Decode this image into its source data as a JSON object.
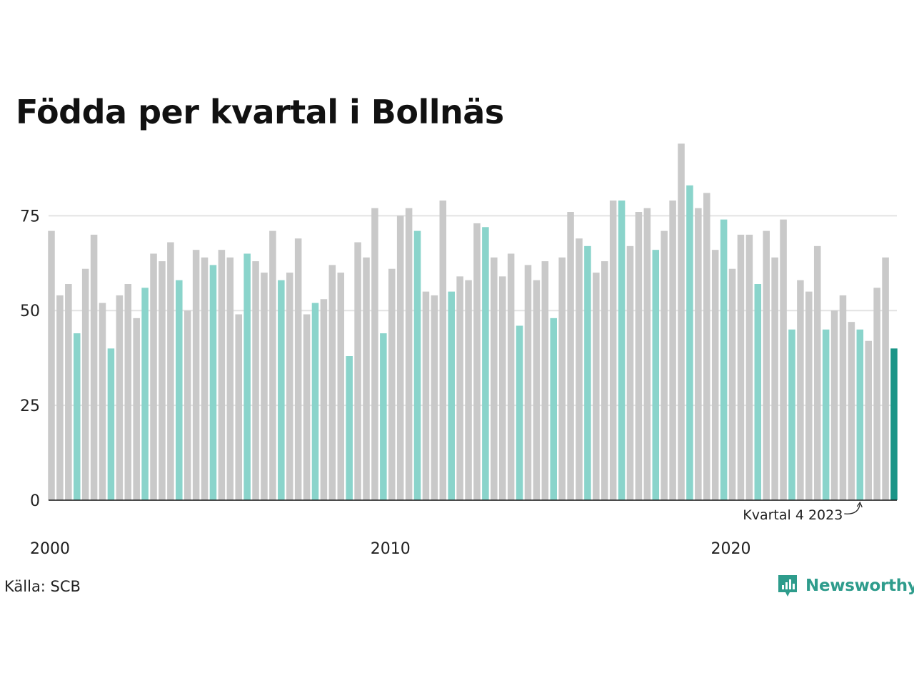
{
  "title": "Födda per kvartal i Bollnäs",
  "source": "Källa: SCB",
  "brand": {
    "name": "Newsworthy",
    "icon": "newsworthy-logo-icon"
  },
  "colors": {
    "default": "#c9c9c9",
    "highlight": "#8ad4cb",
    "latest": "#1a9587",
    "grid": "#e3e3e3",
    "axis": "#111111",
    "brand": "#2e9c8c"
  },
  "chart_data": {
    "type": "bar",
    "title": "Födda per kvartal i Bollnäs",
    "xlabel": "",
    "ylabel": "",
    "ylim": [
      0,
      95
    ],
    "yticks": [
      0,
      25,
      50,
      75
    ],
    "grid": true,
    "xtick_labels": [
      {
        "label": "2000",
        "index": 0
      },
      {
        "label": "2010",
        "index": 40
      },
      {
        "label": "2020",
        "index": 80
      }
    ],
    "annotation": {
      "text": "Kvartal 4 2023",
      "index": 95
    },
    "categories": [
      "2000 K1",
      "2000 K2",
      "2000 K3",
      "2000 K4",
      "2001 K1",
      "2001 K2",
      "2001 K3",
      "2001 K4",
      "2002 K1",
      "2002 K2",
      "2002 K3",
      "2002 K4",
      "2003 K1",
      "2003 K2",
      "2003 K3",
      "2003 K4",
      "2004 K1",
      "2004 K2",
      "2004 K3",
      "2004 K4",
      "2005 K1",
      "2005 K2",
      "2005 K3",
      "2005 K4",
      "2006 K1",
      "2006 K2",
      "2006 K3",
      "2006 K4",
      "2007 K1",
      "2007 K2",
      "2007 K3",
      "2007 K4",
      "2008 K1",
      "2008 K2",
      "2008 K3",
      "2008 K4",
      "2009 K1",
      "2009 K2",
      "2009 K3",
      "2009 K4",
      "2010 K1",
      "2010 K2",
      "2010 K3",
      "2010 K4",
      "2011 K1",
      "2011 K2",
      "2011 K3",
      "2011 K4",
      "2012 K1",
      "2012 K2",
      "2012 K3",
      "2012 K4",
      "2013 K1",
      "2013 K2",
      "2013 K3",
      "2013 K4",
      "2014 K1",
      "2014 K2",
      "2014 K3",
      "2014 K4",
      "2015 K1",
      "2015 K2",
      "2015 K3",
      "2015 K4",
      "2016 K1",
      "2016 K2",
      "2016 K3",
      "2016 K4",
      "2017 K1",
      "2017 K2",
      "2017 K3",
      "2017 K4",
      "2018 K1",
      "2018 K2",
      "2018 K3",
      "2018 K4",
      "2019 K1",
      "2019 K2",
      "2019 K3",
      "2019 K4",
      "2020 K1",
      "2020 K2",
      "2020 K3",
      "2020 K4",
      "2021 K1",
      "2021 K2",
      "2021 K3",
      "2021 K4",
      "2022 K1",
      "2022 K2",
      "2022 K3",
      "2022 K4",
      "2023 K1",
      "2023 K2",
      "2023 K3",
      "2023 K4",
      "2024 K1",
      "2024 K2",
      "2024 K3",
      "2024 K4"
    ],
    "values": [
      71,
      54,
      57,
      44,
      61,
      70,
      52,
      40,
      54,
      57,
      48,
      56,
      65,
      63,
      68,
      58,
      50,
      66,
      64,
      62,
      66,
      64,
      49,
      65,
      63,
      60,
      71,
      58,
      60,
      69,
      49,
      52,
      53,
      62,
      60,
      38,
      68,
      64,
      77,
      44,
      61,
      75,
      77,
      71,
      55,
      54,
      79,
      55,
      59,
      58,
      73,
      72,
      64,
      59,
      65,
      46,
      62,
      58,
      63,
      48,
      64,
      76,
      69,
      67,
      60,
      63,
      79,
      79,
      67,
      76,
      77,
      66,
      71,
      79,
      94,
      83,
      77,
      81,
      66,
      74,
      61,
      70,
      70,
      57,
      71,
      64,
      74,
      45,
      58,
      55,
      67,
      45,
      50,
      54,
      47,
      45,
      42,
      56,
      64,
      40
    ],
    "highlight_quarter": "K4",
    "latest_index": 99
  }
}
